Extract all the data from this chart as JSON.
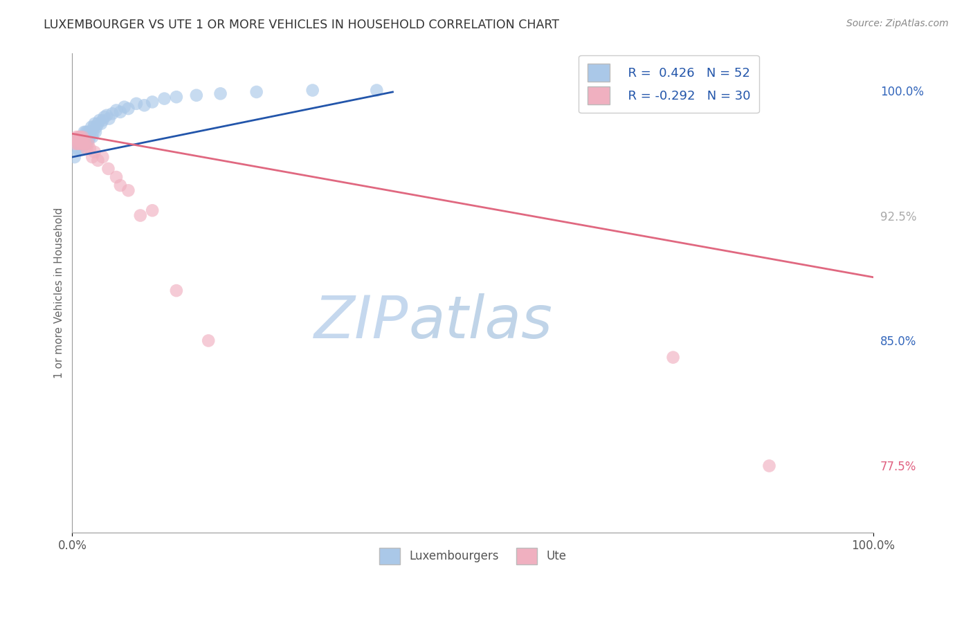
{
  "title": "LUXEMBOURGER VS UTE 1 OR MORE VEHICLES IN HOUSEHOLD CORRELATION CHART",
  "ylabel": "1 or more Vehicles in Household",
  "source_text": "Source: ZipAtlas.com",
  "xlim": [
    0.0,
    1.0
  ],
  "ylim": [
    0.735,
    1.022
  ],
  "x_tick_labels": [
    "0.0%",
    "100.0%"
  ],
  "y_tick_labels_right": [
    "100.0%",
    "92.5%",
    "85.0%",
    "77.5%"
  ],
  "y_tick_values_right": [
    1.0,
    0.925,
    0.85,
    0.775
  ],
  "y_tick_colors_right": [
    "#3366bb",
    "#aaaaaa",
    "#3366bb",
    "#e06080"
  ],
  "legend_r1": "R =  0.426",
  "legend_n1": "N = 52",
  "legend_r2": "R = -0.292",
  "legend_n2": "N = 30",
  "blue_color": "#aac8e8",
  "blue_line_color": "#2255aa",
  "pink_color": "#f0b0c0",
  "pink_line_color": "#e06880",
  "watermark_zip_color": "#c5d8ee",
  "watermark_atlas_color": "#c0d4e8",
  "grid_color": "#cccccc",
  "title_color": "#333333",
  "luxembourger_x": [
    0.003,
    0.005,
    0.006,
    0.007,
    0.008,
    0.009,
    0.01,
    0.011,
    0.012,
    0.013,
    0.013,
    0.014,
    0.015,
    0.016,
    0.016,
    0.017,
    0.018,
    0.018,
    0.019,
    0.02,
    0.021,
    0.022,
    0.023,
    0.024,
    0.025,
    0.026,
    0.027,
    0.028,
    0.029,
    0.03,
    0.032,
    0.034,
    0.036,
    0.038,
    0.04,
    0.043,
    0.046,
    0.05,
    0.055,
    0.06,
    0.065,
    0.07,
    0.08,
    0.09,
    0.1,
    0.115,
    0.13,
    0.155,
    0.185,
    0.23,
    0.3,
    0.38
  ],
  "luxembourger_y": [
    0.96,
    0.965,
    0.968,
    0.97,
    0.965,
    0.968,
    0.972,
    0.97,
    0.965,
    0.97,
    0.972,
    0.968,
    0.975,
    0.97,
    0.972,
    0.975,
    0.968,
    0.972,
    0.975,
    0.97,
    0.975,
    0.972,
    0.975,
    0.978,
    0.972,
    0.975,
    0.978,
    0.98,
    0.975,
    0.978,
    0.98,
    0.982,
    0.98,
    0.982,
    0.984,
    0.985,
    0.983,
    0.986,
    0.988,
    0.987,
    0.99,
    0.989,
    0.992,
    0.991,
    0.993,
    0.995,
    0.996,
    0.997,
    0.998,
    0.999,
    1.0,
    1.0
  ],
  "ute_x": [
    0.004,
    0.005,
    0.006,
    0.007,
    0.008,
    0.009,
    0.01,
    0.011,
    0.012,
    0.013,
    0.014,
    0.015,
    0.016,
    0.018,
    0.02,
    0.022,
    0.025,
    0.028,
    0.032,
    0.038,
    0.045,
    0.055,
    0.06,
    0.07,
    0.085,
    0.1,
    0.13,
    0.17,
    0.75,
    0.87
  ],
  "ute_y": [
    0.968,
    0.972,
    0.97,
    0.968,
    0.972,
    0.968,
    0.972,
    0.97,
    0.968,
    0.972,
    0.968,
    0.97,
    0.968,
    0.965,
    0.968,
    0.965,
    0.96,
    0.963,
    0.958,
    0.96,
    0.953,
    0.948,
    0.943,
    0.94,
    0.925,
    0.928,
    0.88,
    0.85,
    0.84,
    0.775
  ],
  "blue_trend_x": [
    0.0,
    0.4
  ],
  "blue_trend_y": [
    0.96,
    0.999
  ],
  "pink_trend_x": [
    0.0,
    1.0
  ],
  "pink_trend_y": [
    0.974,
    0.888
  ]
}
